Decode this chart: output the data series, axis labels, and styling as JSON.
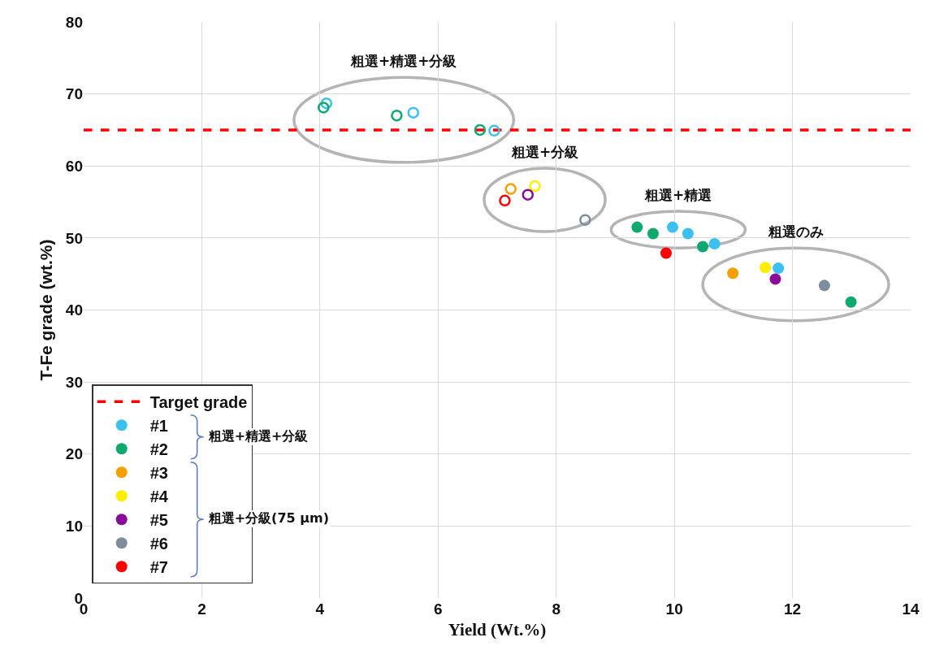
{
  "chart_data": {
    "type": "scatter",
    "xlabel": "Yield (Wt.%)",
    "ylabel": "T-Fe grade (wt.%)",
    "xlim": [
      0,
      14
    ],
    "xticks": [
      0,
      2,
      4,
      6,
      8,
      10,
      12,
      14
    ],
    "ylim": [
      0,
      80
    ],
    "yticks": [
      0,
      10,
      20,
      30,
      40,
      50,
      60,
      70,
      80
    ],
    "grid": true,
    "legend": "bottom left",
    "marker": "circle",
    "ref_lines": [
      {
        "axis": "y",
        "value": 65,
        "label": "Target grade",
        "color": "#ff0000",
        "line_style": "dashed"
      }
    ],
    "series": [
      {
        "name": "#1",
        "color": "#3cc0f0",
        "x": [
          9.97,
          10.23,
          10.68,
          11.76
        ],
        "values": [
          51.5,
          50.6,
          49.2,
          45.8
        ]
      },
      {
        "name": "#2",
        "color": "#0fa86e",
        "x": [
          9.37,
          9.64,
          10.48,
          12.99
        ],
        "values": [
          51.5,
          50.6,
          48.8,
          41.1
        ]
      },
      {
        "name": "#3",
        "color": "#f5a000",
        "x": [
          10.99
        ],
        "values": [
          45.1
        ]
      },
      {
        "name": "#4",
        "color": "#ffee00",
        "x": [
          11.54
        ],
        "values": [
          45.9
        ]
      },
      {
        "name": "#5",
        "color": "#8b0a9a",
        "x": [
          11.71
        ],
        "values": [
          44.3
        ]
      },
      {
        "name": "#6",
        "color": "#7f8c99",
        "x": [
          12.54
        ],
        "values": [
          43.4
        ]
      },
      {
        "name": "#7",
        "color": "#ff0000",
        "x": [
          9.86
        ],
        "values": [
          47.9
        ]
      },
      {
        "color": "#3cc0f0",
        "marker": "circle-open",
        "x": [
          4.11,
          5.58,
          6.95
        ],
        "values": [
          68.7,
          67.4,
          64.9
        ]
      },
      {
        "color": "#0fa86e",
        "marker": "circle-open",
        "x": [
          4.06,
          5.3,
          6.71
        ],
        "values": [
          68.1,
          67.0,
          65.0
        ]
      },
      {
        "color": "#f5a000",
        "marker": "circle-open",
        "x": [
          7.23
        ],
        "values": [
          56.8
        ]
      },
      {
        "color": "#ffee00",
        "marker": "circle-open",
        "x": [
          7.64
        ],
        "values": [
          57.2
        ]
      },
      {
        "color": "#8b0a9a",
        "marker": "circle-open",
        "x": [
          7.52
        ],
        "values": [
          56.0
        ]
      },
      {
        "color": "#7f8c99",
        "marker": "circle-open",
        "x": [
          8.49
        ],
        "values": [
          52.5
        ]
      },
      {
        "color": "#ff0000",
        "marker": "circle-open",
        "x": [
          7.13
        ],
        "values": [
          55.2
        ]
      }
    ],
    "annotations": [
      "粗選+精選+分級",
      "粗選+分級",
      "粗選+精選",
      "粗選のみ",
      "粗選+精選+分級",
      "粗選+分級(75 µm)"
    ]
  }
}
